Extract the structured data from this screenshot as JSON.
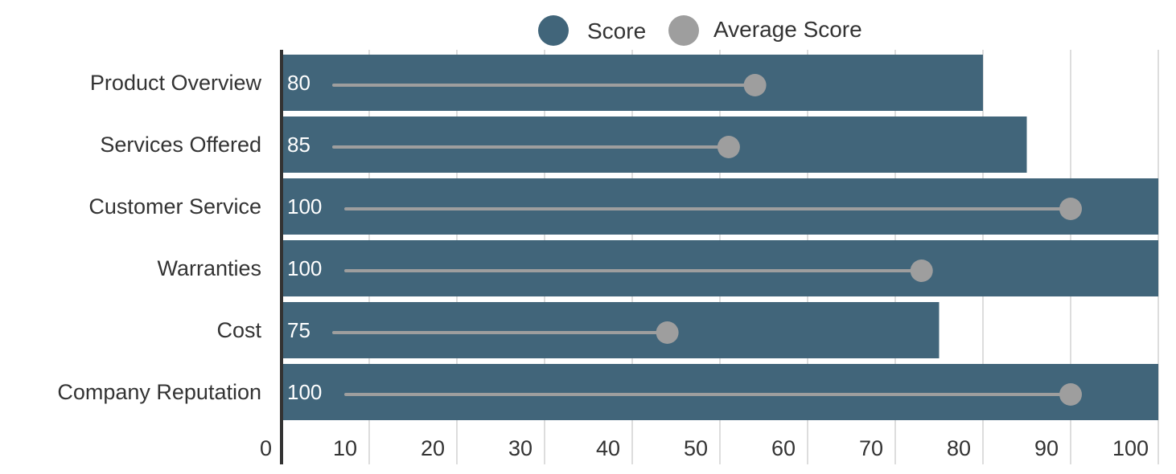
{
  "chart_data": {
    "type": "bar",
    "orientation": "horizontal",
    "categories": [
      "Product Overview",
      "Services Offered",
      "Customer Service",
      "Warranties",
      "Cost",
      "Company Reputation"
    ],
    "series": [
      {
        "name": "Score",
        "values": [
          80,
          85,
          100,
          100,
          75,
          100
        ],
        "color": "#41657a"
      },
      {
        "name": "Average Score",
        "values": [
          54,
          51,
          90,
          73,
          44,
          90
        ],
        "color": "#9e9e9e"
      }
    ],
    "xlim": [
      0,
      100
    ],
    "x_ticks": [
      0,
      10,
      20,
      30,
      40,
      50,
      60,
      70,
      80,
      90,
      100
    ],
    "grid": true,
    "legend_position": "top-center"
  }
}
